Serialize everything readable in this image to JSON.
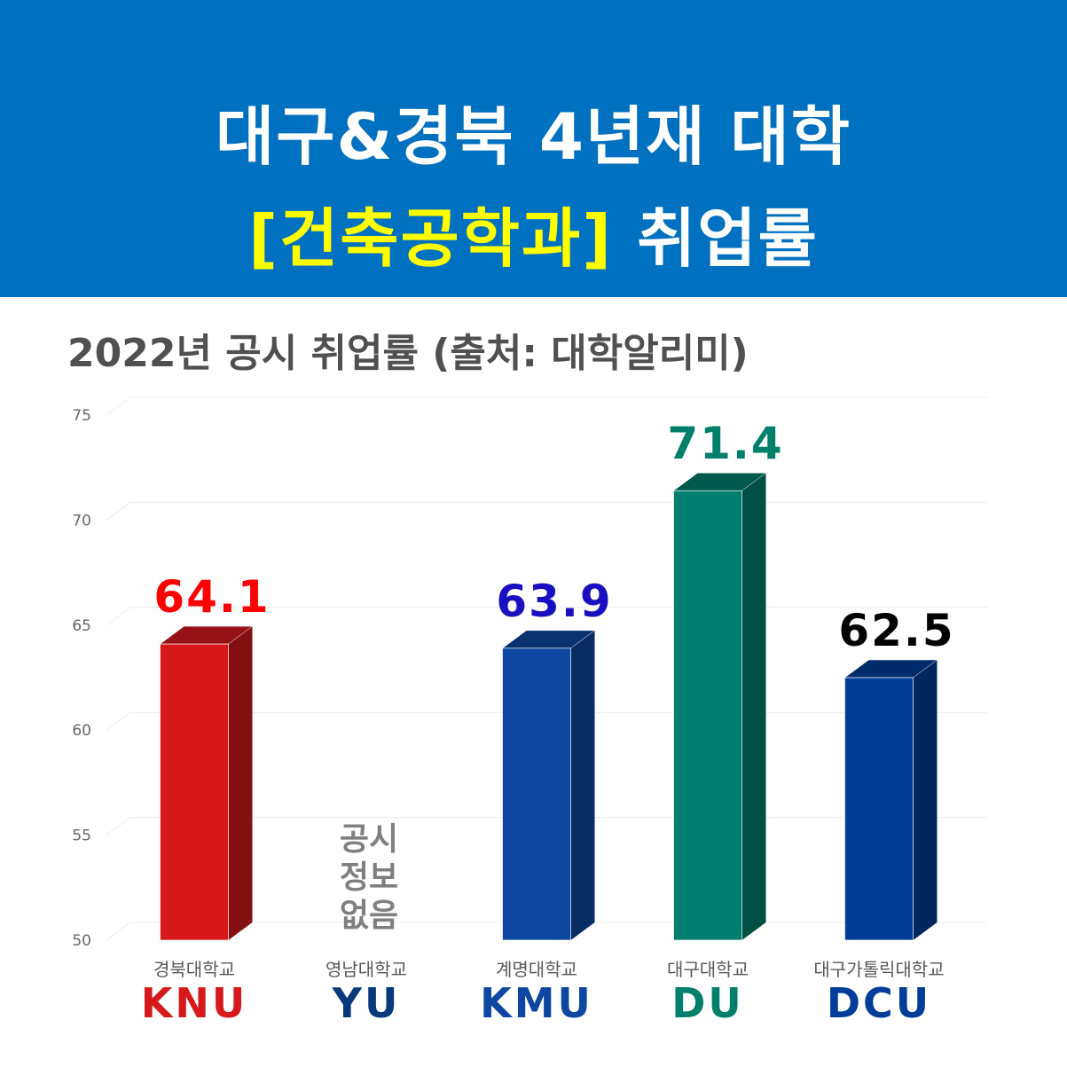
{
  "header": {
    "line1": "대구&경북 4년재 대학",
    "line2_highlight": "[건축공학과]",
    "line2_rest": "취업률",
    "background": "#0070c0",
    "highlight_color": "#ffff00"
  },
  "chart_data": {
    "type": "bar",
    "subtitle": "2022년 공시 취업률 (출처: 대학알리미)",
    "ylim": [
      50,
      75
    ],
    "yticks": [
      "50",
      "55",
      "60",
      "65",
      "70",
      "75"
    ],
    "grid": true,
    "categories": [
      "경북대학교",
      "영남대학교",
      "계명대학교",
      "대구대학교",
      "대구가톨릭대학교"
    ],
    "abbreviations": [
      "KNU",
      "YU",
      "KMU",
      "DU",
      "DCU"
    ],
    "values": [
      64.1,
      null,
      63.9,
      71.4,
      62.5
    ],
    "value_labels": [
      "64.1",
      "",
      "63.9",
      "71.4",
      "62.5"
    ],
    "no_data_note": [
      "공시",
      "정보",
      "없음"
    ],
    "bar_colors": [
      "#d7191c",
      null,
      "#0d47a1",
      "#007f6e",
      "#003d99"
    ],
    "label_colors": [
      "#ff0000",
      "#555555",
      "#1a0fc0",
      "#00806a",
      "#000000"
    ],
    "abbr_colors": [
      "#d7191c",
      "#063a7a",
      "#0d47a1",
      "#00806a",
      "#003d99"
    ]
  }
}
